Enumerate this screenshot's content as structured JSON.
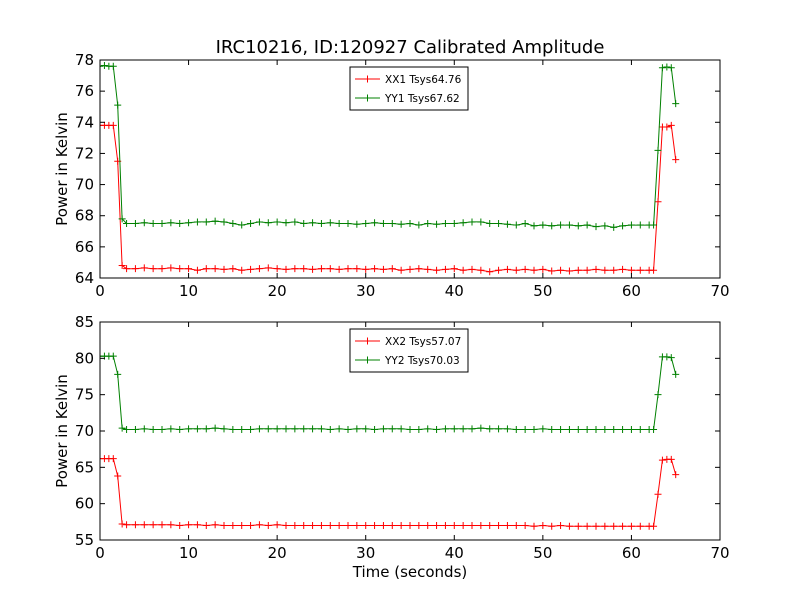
{
  "figure_title": "IRC10216, ID:120927 Calibrated Amplitude",
  "chart_data": [
    {
      "type": "line",
      "title": "IRC10216, ID:120927 Calibrated Amplitude",
      "xlabel": "",
      "ylabel": "Power in Kelvin",
      "xlim": [
        0,
        70
      ],
      "ylim": [
        64,
        78
      ],
      "xticks": [
        "0",
        "10",
        "20",
        "30",
        "40",
        "50",
        "60",
        "70"
      ],
      "yticks": [
        "64",
        "66",
        "68",
        "70",
        "72",
        "74",
        "76",
        "78"
      ],
      "grid": false,
      "legend_position": "top-center",
      "marker": "+",
      "series": [
        {
          "name": "XX1 Tsys64.76",
          "color": "#ff0000",
          "x": [
            0,
            0.5,
            1,
            1.5,
            2,
            2.5,
            3,
            4,
            5,
            6,
            7,
            8,
            9,
            10,
            11,
            12,
            13,
            14,
            15,
            16,
            17,
            18,
            19,
            20,
            21,
            22,
            23,
            24,
            25,
            26,
            27,
            28,
            29,
            30,
            31,
            32,
            33,
            34,
            35,
            36,
            37,
            38,
            39,
            40,
            41,
            42,
            43,
            44,
            45,
            46,
            47,
            48,
            49,
            50,
            51,
            52,
            53,
            54,
            55,
            56,
            57,
            58,
            59,
            60,
            61,
            62,
            62.5,
            63,
            63.5,
            64,
            64.5,
            65
          ],
          "y": [
            73.8,
            73.8,
            73.8,
            73.8,
            71.5,
            64.8,
            64.6,
            64.6,
            64.65,
            64.6,
            64.6,
            64.65,
            64.6,
            64.6,
            64.5,
            64.6,
            64.6,
            64.55,
            64.6,
            64.5,
            64.55,
            64.6,
            64.65,
            64.6,
            64.55,
            64.6,
            64.6,
            64.55,
            64.6,
            64.6,
            64.55,
            64.6,
            64.6,
            64.55,
            64.6,
            64.55,
            64.6,
            64.5,
            64.55,
            64.6,
            64.55,
            64.5,
            64.55,
            64.6,
            64.5,
            64.55,
            64.5,
            64.4,
            64.5,
            64.55,
            64.5,
            64.55,
            64.5,
            64.55,
            64.45,
            64.5,
            64.45,
            64.5,
            64.5,
            64.55,
            64.5,
            64.5,
            64.55,
            64.5,
            64.5,
            64.5,
            64.5,
            68.9,
            73.7,
            73.7,
            73.8,
            71.6
          ]
        },
        {
          "name": "YY1 Tsys67.62",
          "color": "#008000",
          "x": [
            0,
            0.5,
            1,
            1.5,
            2,
            2.5,
            3,
            4,
            5,
            6,
            7,
            8,
            9,
            10,
            11,
            12,
            13,
            14,
            15,
            16,
            17,
            18,
            19,
            20,
            21,
            22,
            23,
            24,
            25,
            26,
            27,
            28,
            29,
            30,
            31,
            32,
            33,
            34,
            35,
            36,
            37,
            38,
            39,
            40,
            41,
            42,
            43,
            44,
            45,
            46,
            47,
            48,
            49,
            50,
            51,
            52,
            53,
            54,
            55,
            56,
            57,
            58,
            59,
            60,
            61,
            62,
            62.5,
            63,
            63.5,
            64,
            64.5,
            65
          ],
          "y": [
            77.6,
            77.65,
            77.6,
            77.6,
            75.1,
            67.8,
            67.5,
            67.5,
            67.55,
            67.5,
            67.5,
            67.55,
            67.5,
            67.55,
            67.6,
            67.6,
            67.65,
            67.6,
            67.5,
            67.4,
            67.5,
            67.6,
            67.55,
            67.6,
            67.55,
            67.6,
            67.5,
            67.55,
            67.5,
            67.55,
            67.5,
            67.5,
            67.45,
            67.5,
            67.55,
            67.5,
            67.5,
            67.45,
            67.5,
            67.4,
            67.5,
            67.45,
            67.5,
            67.5,
            67.55,
            67.6,
            67.6,
            67.5,
            67.5,
            67.45,
            67.4,
            67.5,
            67.35,
            67.4,
            67.35,
            67.4,
            67.4,
            67.35,
            67.4,
            67.3,
            67.35,
            67.25,
            67.35,
            67.4,
            67.4,
            67.4,
            67.4,
            72.2,
            77.5,
            77.55,
            77.5,
            75.2
          ]
        }
      ]
    },
    {
      "type": "line",
      "title": "",
      "xlabel": "Time (seconds)",
      "ylabel": "Power in Kelvin",
      "xlim": [
        0,
        70
      ],
      "ylim": [
        55,
        85
      ],
      "xticks": [
        "0",
        "10",
        "20",
        "30",
        "40",
        "50",
        "60",
        "70"
      ],
      "yticks": [
        "55",
        "60",
        "65",
        "70",
        "75",
        "80",
        "85"
      ],
      "grid": false,
      "legend_position": "top-center",
      "marker": "+",
      "series": [
        {
          "name": "XX2 Tsys57.07",
          "color": "#ff0000",
          "x": [
            0,
            0.5,
            1,
            1.5,
            2,
            2.5,
            3,
            4,
            5,
            6,
            7,
            8,
            9,
            10,
            11,
            12,
            13,
            14,
            15,
            16,
            17,
            18,
            19,
            20,
            21,
            22,
            23,
            24,
            25,
            26,
            27,
            28,
            29,
            30,
            31,
            32,
            33,
            34,
            35,
            36,
            37,
            38,
            39,
            40,
            41,
            42,
            43,
            44,
            45,
            46,
            47,
            48,
            49,
            50,
            51,
            52,
            53,
            54,
            55,
            56,
            57,
            58,
            59,
            60,
            61,
            62,
            62.5,
            63,
            63.5,
            64,
            64.5,
            65
          ],
          "y": [
            66.2,
            66.2,
            66.2,
            66.2,
            63.8,
            57.2,
            57.1,
            57.1,
            57.1,
            57.1,
            57.1,
            57.1,
            57.0,
            57.1,
            57.1,
            57.0,
            57.1,
            57.0,
            57.0,
            57.0,
            57.0,
            57.1,
            57.0,
            57.1,
            57.0,
            57.0,
            57.0,
            57.0,
            57.0,
            57.0,
            57.0,
            57.0,
            57.0,
            57.0,
            57.0,
            57.0,
            57.0,
            57.0,
            57.0,
            57.0,
            57.0,
            57.0,
            57.0,
            57.0,
            57.0,
            57.0,
            57.0,
            57.0,
            57.0,
            57.0,
            57.0,
            57.0,
            56.9,
            57.0,
            56.9,
            57.0,
            56.9,
            56.9,
            56.9,
            56.9,
            56.9,
            56.9,
            56.9,
            56.9,
            56.9,
            56.9,
            56.9,
            61.3,
            66.0,
            66.1,
            66.1,
            64.0
          ]
        },
        {
          "name": "YY2 Tsys70.03",
          "color": "#008000",
          "x": [
            0,
            0.5,
            1,
            1.5,
            2,
            2.5,
            3,
            4,
            5,
            6,
            7,
            8,
            9,
            10,
            11,
            12,
            13,
            14,
            15,
            16,
            17,
            18,
            19,
            20,
            21,
            22,
            23,
            24,
            25,
            26,
            27,
            28,
            29,
            30,
            31,
            32,
            33,
            34,
            35,
            36,
            37,
            38,
            39,
            40,
            41,
            42,
            43,
            44,
            45,
            46,
            47,
            48,
            49,
            50,
            51,
            52,
            53,
            54,
            55,
            56,
            57,
            58,
            59,
            60,
            61,
            62,
            62.5,
            63,
            63.5,
            64,
            64.5,
            65
          ],
          "y": [
            80.3,
            80.3,
            80.3,
            80.3,
            77.8,
            70.4,
            70.2,
            70.2,
            70.3,
            70.2,
            70.2,
            70.3,
            70.2,
            70.3,
            70.3,
            70.3,
            70.4,
            70.3,
            70.2,
            70.2,
            70.2,
            70.3,
            70.3,
            70.3,
            70.3,
            70.3,
            70.3,
            70.3,
            70.3,
            70.2,
            70.3,
            70.2,
            70.3,
            70.3,
            70.2,
            70.3,
            70.3,
            70.3,
            70.2,
            70.2,
            70.3,
            70.2,
            70.3,
            70.3,
            70.3,
            70.3,
            70.4,
            70.3,
            70.3,
            70.3,
            70.2,
            70.2,
            70.2,
            70.3,
            70.2,
            70.2,
            70.2,
            70.2,
            70.2,
            70.2,
            70.2,
            70.2,
            70.2,
            70.2,
            70.2,
            70.2,
            70.2,
            75.0,
            80.2,
            80.2,
            80.1,
            77.8
          ]
        }
      ]
    }
  ]
}
